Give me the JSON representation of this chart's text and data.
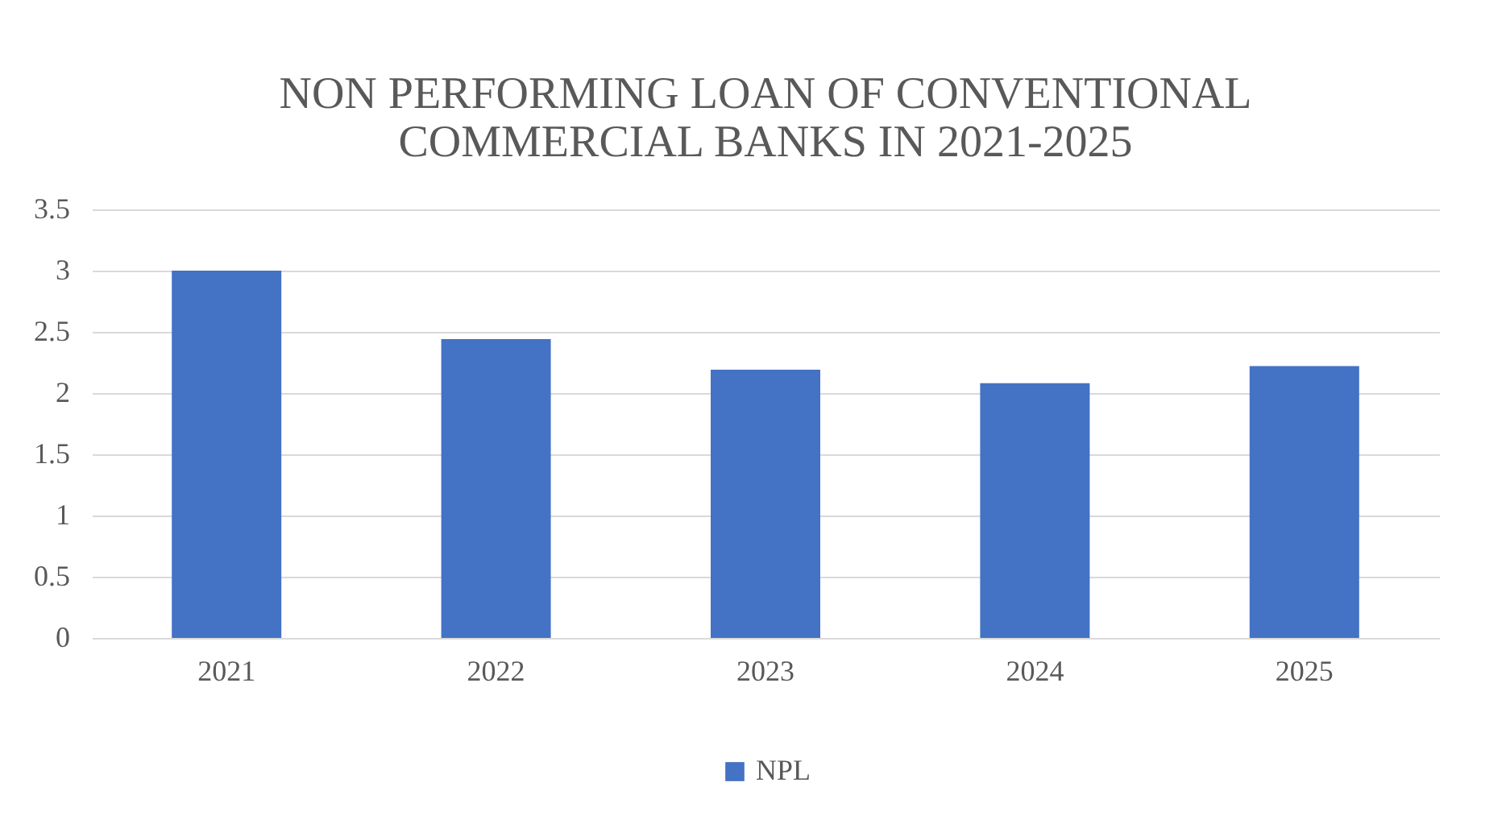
{
  "chart_data": {
    "type": "bar",
    "title": [
      "NON PERFORMING LOAN OF CONVENTIONAL",
      "COMMERCIAL BANKS IN 2021-2025"
    ],
    "categories": [
      "2021",
      "2022",
      "2023",
      "2024",
      "2025"
    ],
    "series": [
      {
        "name": "NPL",
        "color": "#4472c4",
        "values": [
          3.0,
          2.44,
          2.19,
          2.08,
          2.22
        ]
      }
    ],
    "ylim": [
      0,
      3.5
    ],
    "yticks": [
      0,
      0.5,
      1,
      1.5,
      2,
      2.5,
      3,
      3.5
    ],
    "grid": "y",
    "legend": "bottom"
  }
}
